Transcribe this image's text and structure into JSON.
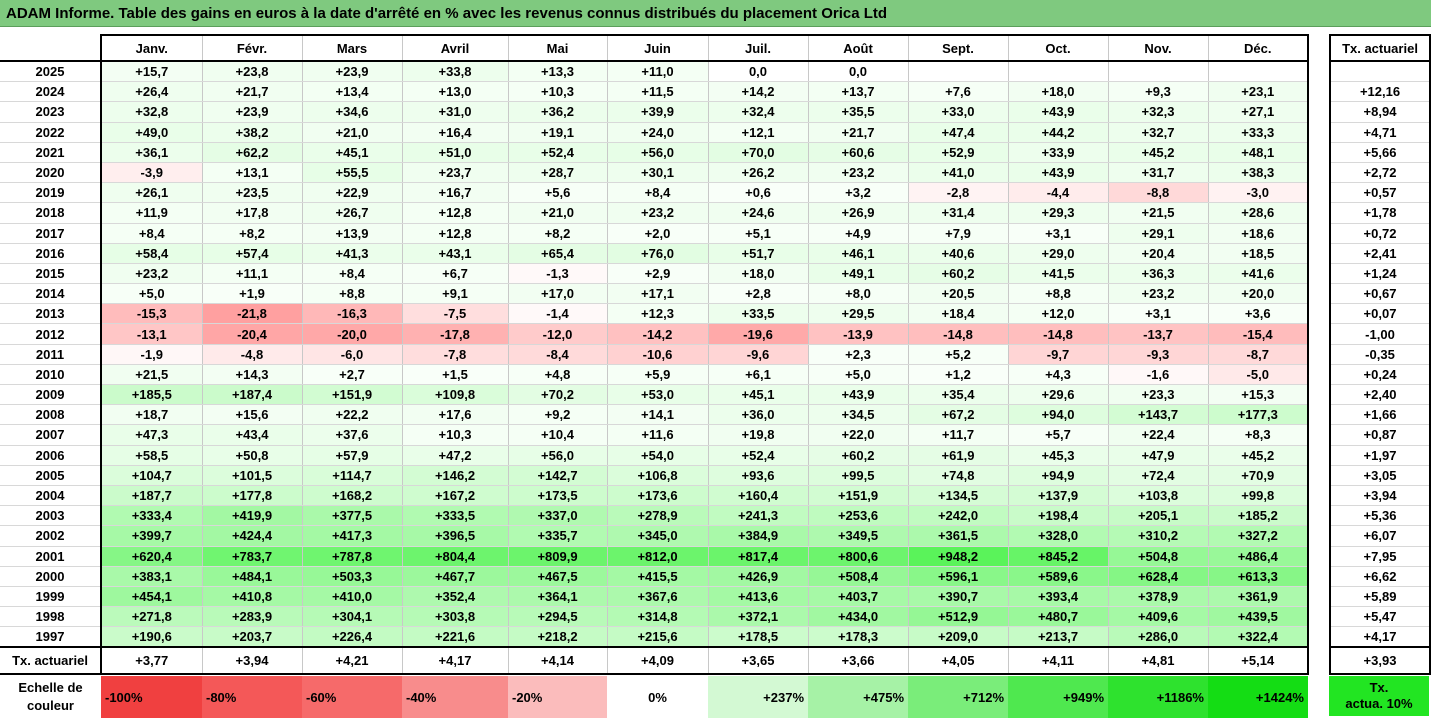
{
  "title": "ADAM Informe. Table des gains en euros à la date d'arrêté en % avec les revenus connus distribués du placement Orica Ltd",
  "months": [
    "Janv.",
    "Févr.",
    "Mars",
    "Avril",
    "Mai",
    "Juin",
    "Juil.",
    "Août",
    "Sept.",
    "Oct.",
    "Nov.",
    "Déc."
  ],
  "side_header": "Tx. actuariel",
  "rows": [
    {
      "year": "2025",
      "values": [
        "+15,7",
        "+23,8",
        "+23,9",
        "+33,8",
        "+13,3",
        "+11,0",
        "0,0",
        "0,0",
        "",
        "",
        "",
        ""
      ],
      "rate": ""
    },
    {
      "year": "2024",
      "values": [
        "+26,4",
        "+21,7",
        "+13,4",
        "+13,0",
        "+10,3",
        "+11,5",
        "+14,2",
        "+13,7",
        "+7,6",
        "+18,0",
        "+9,3",
        "+23,1"
      ],
      "rate": "+12,16"
    },
    {
      "year": "2023",
      "values": [
        "+32,8",
        "+23,9",
        "+34,6",
        "+31,0",
        "+36,2",
        "+39,9",
        "+32,4",
        "+35,5",
        "+33,0",
        "+43,9",
        "+32,3",
        "+27,1"
      ],
      "rate": "+8,94"
    },
    {
      "year": "2022",
      "values": [
        "+49,0",
        "+38,2",
        "+21,0",
        "+16,4",
        "+19,1",
        "+24,0",
        "+12,1",
        "+21,7",
        "+47,4",
        "+44,2",
        "+32,7",
        "+33,3"
      ],
      "rate": "+4,71"
    },
    {
      "year": "2021",
      "values": [
        "+36,1",
        "+62,2",
        "+45,1",
        "+51,0",
        "+52,4",
        "+56,0",
        "+70,0",
        "+60,6",
        "+52,9",
        "+33,9",
        "+45,2",
        "+48,1"
      ],
      "rate": "+5,66"
    },
    {
      "year": "2020",
      "values": [
        "-3,9",
        "+13,1",
        "+55,5",
        "+23,7",
        "+28,7",
        "+30,1",
        "+26,2",
        "+23,2",
        "+41,0",
        "+43,9",
        "+31,7",
        "+38,3"
      ],
      "rate": "+2,72"
    },
    {
      "year": "2019",
      "values": [
        "+26,1",
        "+23,5",
        "+22,9",
        "+16,7",
        "+5,6",
        "+8,4",
        "+0,6",
        "+3,2",
        "-2,8",
        "-4,4",
        "-8,8",
        "-3,0"
      ],
      "rate": "+0,57"
    },
    {
      "year": "2018",
      "values": [
        "+11,9",
        "+17,8",
        "+26,7",
        "+12,8",
        "+21,0",
        "+23,2",
        "+24,6",
        "+26,9",
        "+31,4",
        "+29,3",
        "+21,5",
        "+28,6"
      ],
      "rate": "+1,78"
    },
    {
      "year": "2017",
      "values": [
        "+8,4",
        "+8,2",
        "+13,9",
        "+12,8",
        "+8,2",
        "+2,0",
        "+5,1",
        "+4,9",
        "+7,9",
        "+3,1",
        "+29,1",
        "+18,6"
      ],
      "rate": "+0,72"
    },
    {
      "year": "2016",
      "values": [
        "+58,4",
        "+57,4",
        "+41,3",
        "+43,1",
        "+65,4",
        "+76,0",
        "+51,7",
        "+46,1",
        "+40,6",
        "+29,0",
        "+20,4",
        "+18,5"
      ],
      "rate": "+2,41"
    },
    {
      "year": "2015",
      "values": [
        "+23,2",
        "+11,1",
        "+8,4",
        "+6,7",
        "-1,3",
        "+2,9",
        "+18,0",
        "+49,1",
        "+60,2",
        "+41,5",
        "+36,3",
        "+41,6"
      ],
      "rate": "+1,24"
    },
    {
      "year": "2014",
      "values": [
        "+5,0",
        "+1,9",
        "+8,8",
        "+9,1",
        "+17,0",
        "+17,1",
        "+2,8",
        "+8,0",
        "+20,5",
        "+8,8",
        "+23,2",
        "+20,0"
      ],
      "rate": "+0,67"
    },
    {
      "year": "2013",
      "values": [
        "-15,3",
        "-21,8",
        "-16,3",
        "-7,5",
        "-1,4",
        "+12,3",
        "+33,5",
        "+29,5",
        "+18,4",
        "+12,0",
        "+3,1",
        "+3,6"
      ],
      "rate": "+0,07"
    },
    {
      "year": "2012",
      "values": [
        "-13,1",
        "-20,4",
        "-20,0",
        "-17,8",
        "-12,0",
        "-14,2",
        "-19,6",
        "-13,9",
        "-14,8",
        "-14,8",
        "-13,7",
        "-15,4"
      ],
      "rate": "-1,00"
    },
    {
      "year": "2011",
      "values": [
        "-1,9",
        "-4,8",
        "-6,0",
        "-7,8",
        "-8,4",
        "-10,6",
        "-9,6",
        "+2,3",
        "+5,2",
        "-9,7",
        "-9,3",
        "-8,7"
      ],
      "rate": "-0,35"
    },
    {
      "year": "2010",
      "values": [
        "+21,5",
        "+14,3",
        "+2,7",
        "+1,5",
        "+4,8",
        "+5,9",
        "+6,1",
        "+5,0",
        "+1,2",
        "+4,3",
        "-1,6",
        "-5,0"
      ],
      "rate": "+0,24"
    },
    {
      "year": "2009",
      "values": [
        "+185,5",
        "+187,4",
        "+151,9",
        "+109,8",
        "+70,2",
        "+53,0",
        "+45,1",
        "+43,9",
        "+35,4",
        "+29,6",
        "+23,3",
        "+15,3"
      ],
      "rate": "+2,40"
    },
    {
      "year": "2008",
      "values": [
        "+18,7",
        "+15,6",
        "+22,2",
        "+17,6",
        "+9,2",
        "+14,1",
        "+36,0",
        "+34,5",
        "+67,2",
        "+94,0",
        "+143,7",
        "+177,3"
      ],
      "rate": "+1,66"
    },
    {
      "year": "2007",
      "values": [
        "+47,3",
        "+43,4",
        "+37,6",
        "+10,3",
        "+10,4",
        "+11,6",
        "+19,8",
        "+22,0",
        "+11,7",
        "+5,7",
        "+22,4",
        "+8,3"
      ],
      "rate": "+0,87"
    },
    {
      "year": "2006",
      "values": [
        "+58,5",
        "+50,8",
        "+57,9",
        "+47,2",
        "+56,0",
        "+54,0",
        "+52,4",
        "+60,2",
        "+61,9",
        "+45,3",
        "+47,9",
        "+45,2"
      ],
      "rate": "+1,97"
    },
    {
      "year": "2005",
      "values": [
        "+104,7",
        "+101,5",
        "+114,7",
        "+146,2",
        "+142,7",
        "+106,8",
        "+93,6",
        "+99,5",
        "+74,8",
        "+94,9",
        "+72,4",
        "+70,9"
      ],
      "rate": "+3,05"
    },
    {
      "year": "2004",
      "values": [
        "+187,7",
        "+177,8",
        "+168,2",
        "+167,2",
        "+173,5",
        "+173,6",
        "+160,4",
        "+151,9",
        "+134,5",
        "+137,9",
        "+103,8",
        "+99,8"
      ],
      "rate": "+3,94"
    },
    {
      "year": "2003",
      "values": [
        "+333,4",
        "+419,9",
        "+377,5",
        "+333,5",
        "+337,0",
        "+278,9",
        "+241,3",
        "+253,6",
        "+242,0",
        "+198,4",
        "+205,1",
        "+185,2"
      ],
      "rate": "+5,36"
    },
    {
      "year": "2002",
      "values": [
        "+399,7",
        "+424,4",
        "+417,3",
        "+396,5",
        "+335,7",
        "+345,0",
        "+384,9",
        "+349,5",
        "+361,5",
        "+328,0",
        "+310,2",
        "+327,2"
      ],
      "rate": "+6,07"
    },
    {
      "year": "2001",
      "values": [
        "+620,4",
        "+783,7",
        "+787,8",
        "+804,4",
        "+809,9",
        "+812,0",
        "+817,4",
        "+800,6",
        "+948,2",
        "+845,2",
        "+504,8",
        "+486,4"
      ],
      "rate": "+7,95"
    },
    {
      "year": "2000",
      "values": [
        "+383,1",
        "+484,1",
        "+503,3",
        "+467,7",
        "+467,5",
        "+415,5",
        "+426,9",
        "+508,4",
        "+596,1",
        "+589,6",
        "+628,4",
        "+613,3"
      ],
      "rate": "+6,62"
    },
    {
      "year": "1999",
      "values": [
        "+454,1",
        "+410,8",
        "+410,0",
        "+352,4",
        "+364,1",
        "+367,6",
        "+413,6",
        "+403,7",
        "+390,7",
        "+393,4",
        "+378,9",
        "+361,9"
      ],
      "rate": "+5,89"
    },
    {
      "year": "1998",
      "values": [
        "+271,8",
        "+283,9",
        "+304,1",
        "+303,8",
        "+294,5",
        "+314,8",
        "+372,1",
        "+434,0",
        "+512,9",
        "+480,7",
        "+409,6",
        "+439,5"
      ],
      "rate": "+5,47"
    },
    {
      "year": "1997",
      "values": [
        "+190,6",
        "+203,7",
        "+226,4",
        "+221,6",
        "+218,2",
        "+215,6",
        "+178,5",
        "+178,3",
        "+209,0",
        "+213,7",
        "+286,0",
        "+322,4"
      ],
      "rate": "+4,17"
    }
  ],
  "footer": {
    "label": "Tx. actuariel",
    "values": [
      "+3,77",
      "+3,94",
      "+4,21",
      "+4,17",
      "+4,14",
      "+4,09",
      "+3,65",
      "+3,66",
      "+4,05",
      "+4,11",
      "+4,81",
      "+5,14"
    ],
    "overall": "+3,93"
  },
  "scale": {
    "label_line1": "Echelle de",
    "label_line2": "couleur",
    "cells": [
      {
        "text": "-100%",
        "color": "#f04040",
        "align": "left"
      },
      {
        "text": "-80%",
        "color": "#f45858",
        "align": "left"
      },
      {
        "text": "-60%",
        "color": "#f66a6a",
        "align": "left"
      },
      {
        "text": "-40%",
        "color": "#f88c8c",
        "align": "left"
      },
      {
        "text": "-20%",
        "color": "#fbbcbc",
        "align": "left"
      },
      {
        "text": "0%",
        "color": "#ffffff",
        "align": "center"
      },
      {
        "text": "+237%",
        "color": "#d3f9d3",
        "align": "right"
      },
      {
        "text": "+475%",
        "color": "#a6f2a6",
        "align": "right"
      },
      {
        "text": "+712%",
        "color": "#7aed7a",
        "align": "right"
      },
      {
        "text": "+949%",
        "color": "#4fe84f",
        "align": "right"
      },
      {
        "text": "+1186%",
        "color": "#2ee22e",
        "align": "right"
      },
      {
        "text": "+1424%",
        "color": "#14dd14",
        "align": "right"
      }
    ],
    "side_line1": "Tx.",
    "side_line2": "actua. 10%",
    "side_color": "#22e522"
  }
}
